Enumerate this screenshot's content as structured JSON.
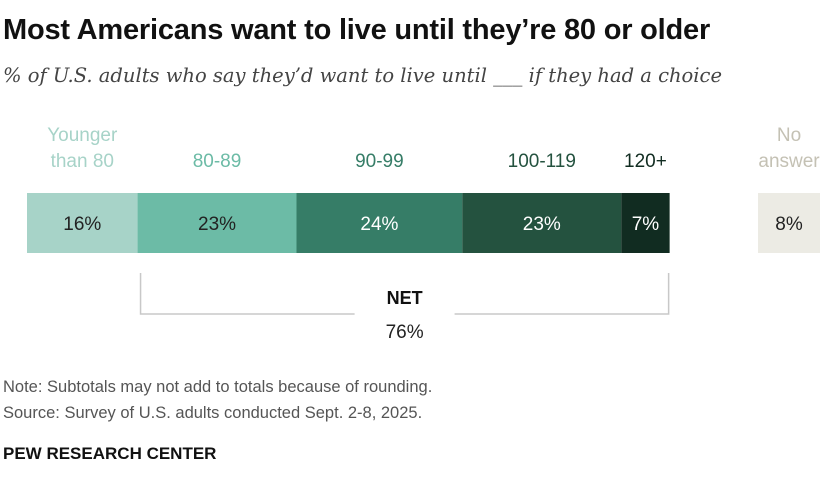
{
  "title": "Most Americans want to live until they’re 80 or older",
  "subtitle": "% of U.S. adults who say they’d want to live until ___ if they had a choice",
  "chart_data": {
    "type": "bar",
    "orientation": "horizontal-stacked",
    "categories": [
      "Younger than 80",
      "80-89",
      "90-99",
      "100-119",
      "120+",
      "No answer"
    ],
    "category_label_lines": [
      [
        "Younger",
        "than 80"
      ],
      [
        "80-89"
      ],
      [
        "90-99"
      ],
      [
        "100-119"
      ],
      [
        "120+"
      ],
      [
        "No",
        "answer"
      ]
    ],
    "values": [
      16,
      23,
      24,
      23,
      7,
      8
    ],
    "value_labels": [
      "16%",
      "23%",
      "24%",
      "23%",
      "7%",
      "8%"
    ],
    "colors": [
      "#a7d3c8",
      "#6cbba6",
      "#367d67",
      "#24523f",
      "#112c21",
      "#ecebe4"
    ],
    "label_colors": [
      "#a7d3c8",
      "#6cbba6",
      "#367d67",
      "#24523f",
      "#112c21",
      "#c4c1b4"
    ],
    "value_text_colors": [
      "#222222",
      "#222222",
      "#ffffff",
      "#ffffff",
      "#ffffff",
      "#222222"
    ],
    "separate_last_category": true,
    "net": {
      "label": "NET",
      "value": "76%",
      "value_number": 76,
      "spans_categories": [
        "80-89",
        "90-99",
        "100-119",
        "120+"
      ]
    }
  },
  "note": "Note: Subtotals may not add to totals because of rounding.",
  "source": "Source: Survey of U.S. adults conducted Sept. 2-8, 2025.",
  "brand": "PEW RESEARCH CENTER"
}
